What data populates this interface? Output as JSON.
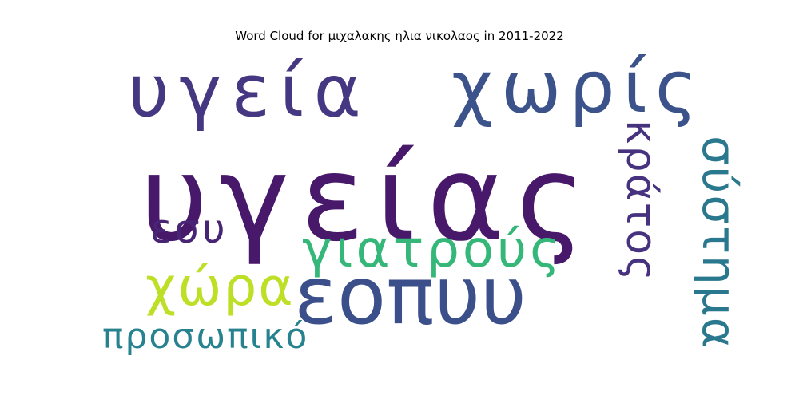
{
  "chart_data": {
    "type": "wordcloud",
    "title": "Word Cloud for μιχαλακης ηλια νικολαος in 2011-2022",
    "words": [
      {
        "text": "υγείας",
        "rank": 1,
        "color": "#48186a",
        "orientation": "horizontal"
      },
      {
        "text": "υγεία",
        "rank": 2,
        "color": "#453781",
        "orientation": "horizontal"
      },
      {
        "text": "χωρίς",
        "rank": 3,
        "color": "#3b528b",
        "orientation": "horizontal"
      },
      {
        "text": "εοπυυ",
        "rank": 4,
        "color": "#3b4f8a",
        "orientation": "horizontal"
      },
      {
        "text": "γιατρούς",
        "rank": 5,
        "color": "#35b779",
        "orientation": "horizontal"
      },
      {
        "text": "σύστημα",
        "rank": 6,
        "color": "#2a788e",
        "orientation": "vertical"
      },
      {
        "text": "κράτος",
        "rank": 7,
        "color": "#46327e",
        "orientation": "vertical"
      },
      {
        "text": "χώρα",
        "rank": 8,
        "color": "#bddf26",
        "orientation": "horizontal"
      },
      {
        "text": "εσυ",
        "rank": 9,
        "color": "#482475",
        "orientation": "horizontal"
      },
      {
        "text": "προσωπικό",
        "rank": 10,
        "color": "#26828e",
        "orientation": "horizontal"
      }
    ]
  }
}
